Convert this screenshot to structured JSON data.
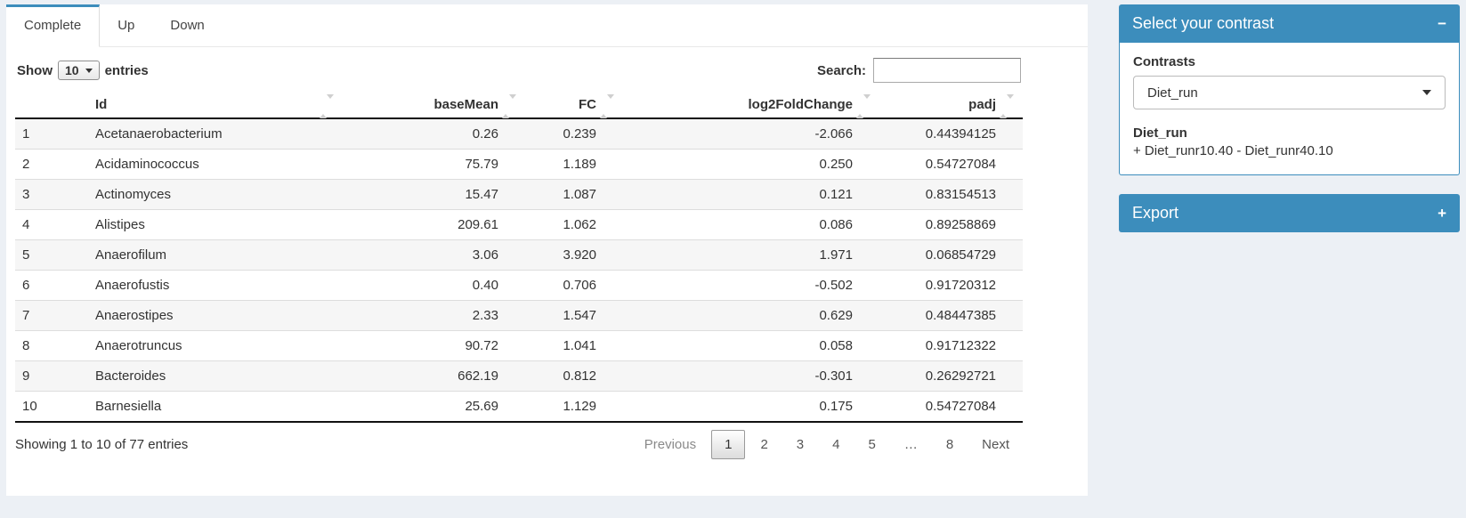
{
  "colors": {
    "accent": "#3c8dbc",
    "page_bg": "#ecf0f5",
    "stripe": "#f6f6f6"
  },
  "tabs": [
    {
      "name": "tab-complete",
      "label": "Complete",
      "active": true
    },
    {
      "name": "tab-up",
      "label": "Up",
      "active": false
    },
    {
      "name": "tab-down",
      "label": "Down",
      "active": false
    }
  ],
  "length_control": {
    "prefix": "Show",
    "value": "10",
    "suffix": "entries"
  },
  "search": {
    "label": "Search:",
    "value": "",
    "placeholder": ""
  },
  "table": {
    "headers": [
      "",
      "Id",
      "baseMean",
      "FC",
      "log2FoldChange",
      "padj"
    ],
    "rows": [
      [
        "1",
        "Acetanaerobacterium",
        "0.26",
        "0.239",
        "-2.066",
        "0.44394125"
      ],
      [
        "2",
        "Acidaminococcus",
        "75.79",
        "1.189",
        "0.250",
        "0.54727084"
      ],
      [
        "3",
        "Actinomyces",
        "15.47",
        "1.087",
        "0.121",
        "0.83154513"
      ],
      [
        "4",
        "Alistipes",
        "209.61",
        "1.062",
        "0.086",
        "0.89258869"
      ],
      [
        "5",
        "Anaerofilum",
        "3.06",
        "3.920",
        "1.971",
        "0.06854729"
      ],
      [
        "6",
        "Anaerofustis",
        "0.40",
        "0.706",
        "-0.502",
        "0.91720312"
      ],
      [
        "7",
        "Anaerostipes",
        "2.33",
        "1.547",
        "0.629",
        "0.48447385"
      ],
      [
        "8",
        "Anaerotruncus",
        "90.72",
        "1.041",
        "0.058",
        "0.91712322"
      ],
      [
        "9",
        "Bacteroides",
        "662.19",
        "0.812",
        "-0.301",
        "0.26292721"
      ],
      [
        "10",
        "Barnesiella",
        "25.69",
        "1.129",
        "0.175",
        "0.54727084"
      ]
    ],
    "cell_names": [
      "row-number-cell",
      "id-cell",
      "basemean-cell",
      "fc-cell",
      "log2fc-cell",
      "padj-cell"
    ],
    "info": "Showing 1 to 10 of 77 entries"
  },
  "pagination": {
    "items": [
      {
        "name": "previous-button",
        "label": "Previous",
        "type": "disabled"
      },
      {
        "name": "page-1-button",
        "label": "1",
        "type": "active"
      },
      {
        "name": "page-2-button",
        "label": "2",
        "type": "page"
      },
      {
        "name": "page-3-button",
        "label": "3",
        "type": "page"
      },
      {
        "name": "page-4-button",
        "label": "4",
        "type": "page"
      },
      {
        "name": "page-5-button",
        "label": "5",
        "type": "page"
      },
      {
        "name": "pagination-ellipsis",
        "label": "…",
        "type": "ellipsis"
      },
      {
        "name": "page-8-button",
        "label": "8",
        "type": "page"
      },
      {
        "name": "next-button",
        "label": "Next",
        "type": "page"
      }
    ]
  },
  "contrast_panel": {
    "title": "Select your contrast",
    "collapse_icon": "−",
    "contrasts_label": "Contrasts",
    "selected_contrast": "Diet_run",
    "contrast_name": "Diet_run",
    "contrast_formula": "+ Diet_runr10.40 - Diet_runr40.10"
  },
  "export_panel": {
    "title": "Export",
    "expand_icon": "+"
  }
}
